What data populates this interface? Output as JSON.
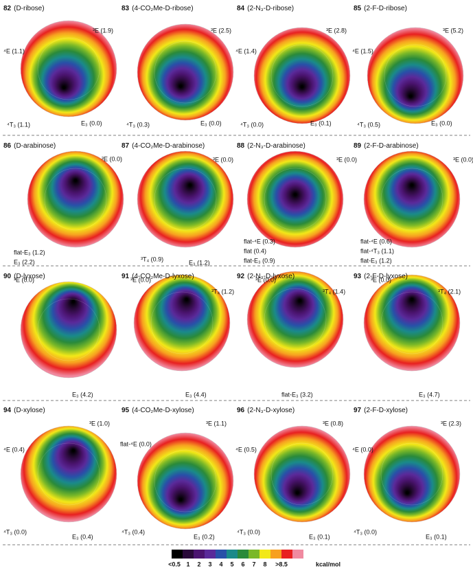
{
  "panels": [
    {
      "number": "82",
      "title": "(D-ribose)",
      "labels": [
        "³E (1.9)",
        "⁴E (1.1)",
        "⁴T₃ (1.1)",
        "E₃ (0.0)"
      ]
    },
    {
      "number": "83",
      "title": "(4-CO₂Me-D-ribose)",
      "labels": [
        "³E (2.5)",
        "⁴T₃ (0.3)",
        "E₃ (0.0)"
      ]
    },
    {
      "number": "84",
      "title": "(2-N₃-D-ribose)",
      "labels": [
        "³E (2.8)",
        "⁴E (1.4)",
        "⁴T₃ (0.0)",
        "E₃ (0.1)"
      ]
    },
    {
      "number": "85",
      "title": "(2-F-D-ribose)",
      "labels": [
        "³E (5.2)",
        "⁴E (1.5)",
        "⁴T₃ (0.5)",
        "E₃ (0.0)"
      ]
    },
    {
      "number": "86",
      "title": "(D-arabinose)",
      "labels": [
        "³E (0.0)",
        "flat-E₃ (1.2)",
        "E₃ (2.2)"
      ]
    },
    {
      "number": "87",
      "title": "(4-CO₂Me-D-arabinose)",
      "labels": [
        "³E (0.0)",
        "³T₄ (0.9)",
        "E₃ (1.2)"
      ]
    },
    {
      "number": "88",
      "title": "(2-N₃-D-arabinose)",
      "labels": [
        "³E (0.0)",
        "flat-⁴E (0.3)",
        "flat (0.4)",
        "flat-E₃ (0.9)"
      ]
    },
    {
      "number": "89",
      "title": "(2-F-D-arabinose)",
      "labels": [
        "³E (0.0)",
        "flat-⁴E (0.6)",
        "flat-⁴T₃ (1.1)",
        "flat-E₃ (1.2)"
      ]
    },
    {
      "number": "90",
      "title": "(D-lyxose)",
      "labels": [
        "³E (0.0)",
        "E₃ (4.2)"
      ]
    },
    {
      "number": "91",
      "title": "(4-CO₂Me-D-lyxose)",
      "labels": [
        "³E (0.0)",
        "³T₄ (1.2)",
        "E₃ (4.4)"
      ]
    },
    {
      "number": "92",
      "title": "(2-N₃-D-lyxose)",
      "labels": [
        "³E (0.0)",
        "³T₄ (1.4)",
        "flat-E₃ (3.2)"
      ]
    },
    {
      "number": "93",
      "title": "(2-F-D-lyxose)",
      "labels": [
        "³E (0.0)",
        "³T₄ (2.1)",
        "E₃ (4.7)"
      ]
    },
    {
      "number": "94",
      "title": "(D-xylose)",
      "labels": [
        "³E (1.0)",
        "⁴E (0.4)",
        "⁴T₃ (0.0)",
        "E₃ (0.4)"
      ]
    },
    {
      "number": "95",
      "title": "(4-CO₂Me-D-xylose)",
      "labels": [
        "³E (1.1)",
        "flat-⁴E (0.0)",
        "⁴T₃ (0.4)",
        "E₃ (0.2)"
      ]
    },
    {
      "number": "96",
      "title": "(2-N₃-D-xylose)",
      "labels": [
        "³E (0.8)",
        "⁴E (0.5)",
        "⁴T₃ (0.0)",
        "E₃ (0.1)"
      ]
    },
    {
      "number": "97",
      "title": "(2-F-D-xylose)",
      "labels": [
        "³E (2.3)",
        "⁴E (0.0)",
        "⁴T₃ (0.0)",
        "E₃ (0.1)"
      ]
    }
  ],
  "legend": {
    "labels": [
      "<0.5",
      "1",
      "2",
      "3",
      "4",
      "5",
      "6",
      "7",
      "8",
      ">8.5"
    ],
    "unit": "kcal/mol",
    "colors": [
      "#000000",
      "#2a0a3a",
      "#4b1470",
      "#5a2a9a",
      "#2850a8",
      "#1a8a8a",
      "#2a8a3a",
      "#7ab828",
      "#f2e818",
      "#f7a020",
      "#e82020",
      "#f08aa0"
    ]
  }
}
